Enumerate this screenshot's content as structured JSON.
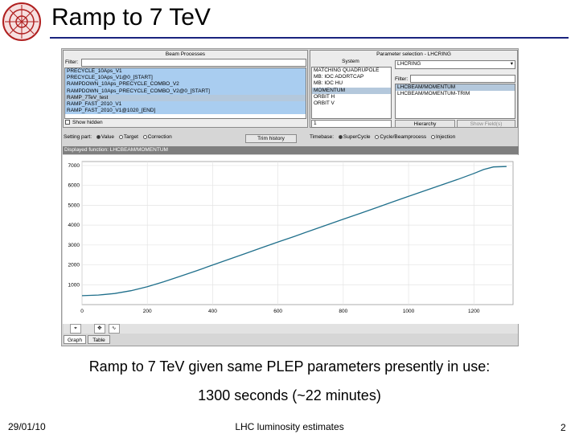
{
  "slide": {
    "title": "Ramp to 7 TeV",
    "caption_line1": "Ramp to 7 TeV given same PLEP parameters presently in use:",
    "caption_line2": "1300 seconds (~22 minutes)",
    "footer_date": "29/01/10",
    "footer_center": "LHC luminosity estimates",
    "page_number": "2"
  },
  "beam_processes": {
    "header": "Beam Processes",
    "filter_label": "Filter:",
    "filter_value": "",
    "items": [
      {
        "label": "PRECYCLE_10Aps_V1",
        "state": "selected"
      },
      {
        "label": "PRECYCLE_10Aps_V1@0_[START]",
        "state": "selected"
      },
      {
        "label": "RAMPDOWN_10Aps_PRECYCLE_COMBO_V2",
        "state": "selected"
      },
      {
        "label": "RAMPDOWN_10Aps_PRECYCLE_COMBO_V2@0_[START]",
        "state": "selected"
      },
      {
        "label": "RAMP_7TeV_test",
        "state": "current"
      },
      {
        "label": "RAMP_FAST_2010_V1",
        "state": "selected"
      },
      {
        "label": "RAMP_FAST_2010_V1@1020_[END]",
        "state": "selected"
      }
    ],
    "show_hidden_label": "Show hidden"
  },
  "parameter_selection": {
    "header": "Parameter selection - LHCRING",
    "system_label": "System",
    "systems": [
      "MATCHING QUADRUPOLE",
      "MB: IOC ADORTCAP",
      "MB: IOC HU",
      "MOMENTUM",
      "ORBIT H",
      "ORBIT V"
    ],
    "selected_system": "MOMENTUM",
    "dropdown_value": "LHCRING",
    "filter_label": "Filter:",
    "parameters": [
      "LHCBEAM/MOMENTUM",
      "LHCBEAM/MOMENTUM-TRIM"
    ],
    "selected_parameter": "LHCBEAM/MOMENTUM",
    "page_value": "1",
    "hierarchy_button": "Hierarchy",
    "show_fields_button": "Show Field(s)"
  },
  "settings_bar": {
    "setting_part_label": "Setting part:",
    "value_label": "Value",
    "target_label": "Target",
    "correction_label": "Correction",
    "trim_history_button": "Trim history",
    "timebase_label": "Timebase:",
    "supercycle_label": "SuperCycle",
    "cycle_label": "Cycle/Beamprocess",
    "injection_label": "Injection"
  },
  "displayed_function": "Displayed function: LHCBEAM/MOMENTUM",
  "graph_tabs": [
    "Graph",
    "Table"
  ],
  "chart_data": {
    "type": "line",
    "title": "",
    "xlabel": "",
    "ylabel": "",
    "xlim": [
      0,
      1320
    ],
    "ylim": [
      0,
      7200
    ],
    "x_ticks": [
      "0",
      "200",
      "400",
      "600",
      "800",
      "1000",
      "1200"
    ],
    "y_ticks": [
      "1000",
      "2000",
      "3000",
      "4000",
      "5000",
      "6000",
      "7000"
    ],
    "grid": true,
    "series": [
      {
        "color": "#1f6f8b",
        "x": [
          0,
          50,
          100,
          150,
          200,
          250,
          300,
          350,
          400,
          450,
          500,
          550,
          600,
          650,
          700,
          750,
          800,
          850,
          900,
          950,
          1000,
          1050,
          1100,
          1150,
          1200,
          1230,
          1260,
          1300
        ],
        "y": [
          450,
          480,
          560,
          700,
          900,
          1150,
          1420,
          1700,
          1990,
          2280,
          2570,
          2860,
          3150,
          3430,
          3720,
          4010,
          4300,
          4580,
          4870,
          5160,
          5450,
          5730,
          6020,
          6300,
          6600,
          6800,
          6930,
          6950
        ]
      }
    ]
  }
}
